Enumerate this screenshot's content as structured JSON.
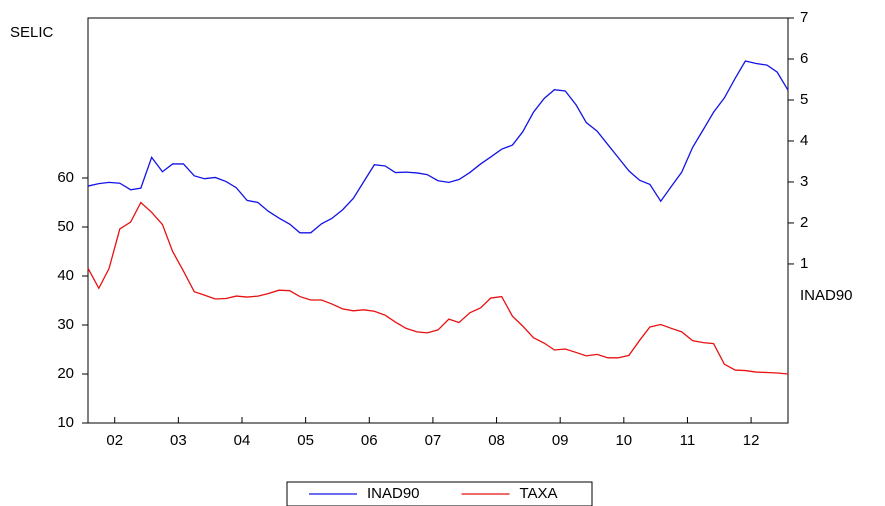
{
  "chart_data": {
    "type": "line",
    "y_label": "SELIC",
    "y2_label": "INAD90",
    "x": [
      2002.08,
      2002.25,
      2002.41,
      2002.58,
      2002.75,
      2002.91,
      2003.08,
      2003.25,
      2003.41,
      2003.58,
      2003.75,
      2003.91,
      2004.08,
      2004.25,
      2004.41,
      2004.58,
      2004.75,
      2004.91,
      2005.08,
      2005.25,
      2005.41,
      2005.58,
      2005.75,
      2005.91,
      2006.08,
      2006.25,
      2006.41,
      2006.58,
      2006.75,
      2006.91,
      2007.08,
      2007.25,
      2007.41,
      2007.58,
      2007.75,
      2007.91,
      2008.08,
      2008.25,
      2008.41,
      2008.58,
      2008.75,
      2008.91,
      2009.08,
      2009.25,
      2009.41,
      2009.58,
      2009.75,
      2009.91,
      2010.08,
      2010.25,
      2010.41,
      2010.58,
      2010.75,
      2010.91,
      2011.08,
      2011.25,
      2011.41,
      2011.58,
      2011.75,
      2011.91,
      2012.08,
      2012.25,
      2012.41,
      2012.58,
      2012.75,
      2012.91,
      2013.08
    ],
    "series": [
      {
        "name": "INAD90",
        "color": "#1414e6",
        "axis": "y2",
        "values": [
          2.9,
          2.96,
          2.99,
          2.97,
          2.81,
          2.85,
          3.6,
          3.25,
          3.44,
          3.44,
          3.15,
          3.08,
          3.11,
          3.01,
          2.86,
          2.55,
          2.5,
          2.29,
          2.12,
          1.97,
          1.76,
          1.76,
          1.98,
          2.11,
          2.32,
          2.6,
          3.0,
          3.42,
          3.39,
          3.23,
          3.24,
          3.22,
          3.18,
          3.03,
          2.99,
          3.06,
          3.23,
          3.44,
          3.61,
          3.8,
          3.9,
          4.22,
          4.7,
          5.04,
          5.25,
          5.22,
          4.88,
          4.45,
          4.24,
          3.91,
          3.6,
          3.27,
          3.04,
          2.94,
          2.53,
          2.9,
          3.24,
          3.84,
          4.28,
          4.7,
          5.05,
          5.53,
          5.95,
          5.89,
          5.85,
          5.68,
          5.24
        ]
      },
      {
        "name": "TAXA",
        "color": "#e81010",
        "values": [
          41.6,
          37.5,
          41.5,
          49.6,
          51.0,
          55.0,
          53.0,
          50.5,
          45.0,
          41.0,
          36.8,
          36.1,
          35.3,
          35.4,
          35.9,
          35.7,
          35.9,
          36.4,
          37.1,
          37.0,
          35.8,
          35.1,
          35.1,
          34.3,
          33.3,
          32.9,
          33.1,
          32.8,
          32.0,
          30.6,
          29.3,
          28.6,
          28.4,
          29.0,
          31.2,
          30.5,
          32.5,
          33.5,
          35.5,
          35.8,
          31.8,
          29.8,
          27.4,
          26.3,
          24.9,
          25.1,
          24.4,
          23.7,
          24.0,
          23.3,
          23.3,
          23.8,
          26.9,
          29.6,
          30.1,
          29.3,
          28.6,
          26.8,
          26.4,
          26.2,
          22.0,
          20.8,
          20.7,
          20.4,
          20.3,
          20.2,
          20.0
        ]
      }
    ],
    "xlim": [
      2002.08,
      2013.08
    ],
    "xticks": [
      {
        "value": 2002.5,
        "label": "02"
      },
      {
        "value": 2003.5,
        "label": "03"
      },
      {
        "value": 2004.5,
        "label": "04"
      },
      {
        "value": 2005.5,
        "label": "05"
      },
      {
        "value": 2006.5,
        "label": "06"
      },
      {
        "value": 2007.5,
        "label": "07"
      },
      {
        "value": 2008.5,
        "label": "08"
      },
      {
        "value": 2009.5,
        "label": "09"
      },
      {
        "value": 2010.5,
        "label": "10"
      },
      {
        "value": 2011.5,
        "label": "11"
      },
      {
        "value": 2012.5,
        "label": "12"
      }
    ],
    "ylim": [
      10,
      92.65
    ],
    "yticks": [
      10,
      20,
      30,
      40,
      50,
      60
    ],
    "y2lim": [
      -2.88,
      7
    ],
    "y2ticks": [
      1,
      2,
      3,
      4,
      5,
      6,
      7
    ],
    "legend": "bottom"
  }
}
